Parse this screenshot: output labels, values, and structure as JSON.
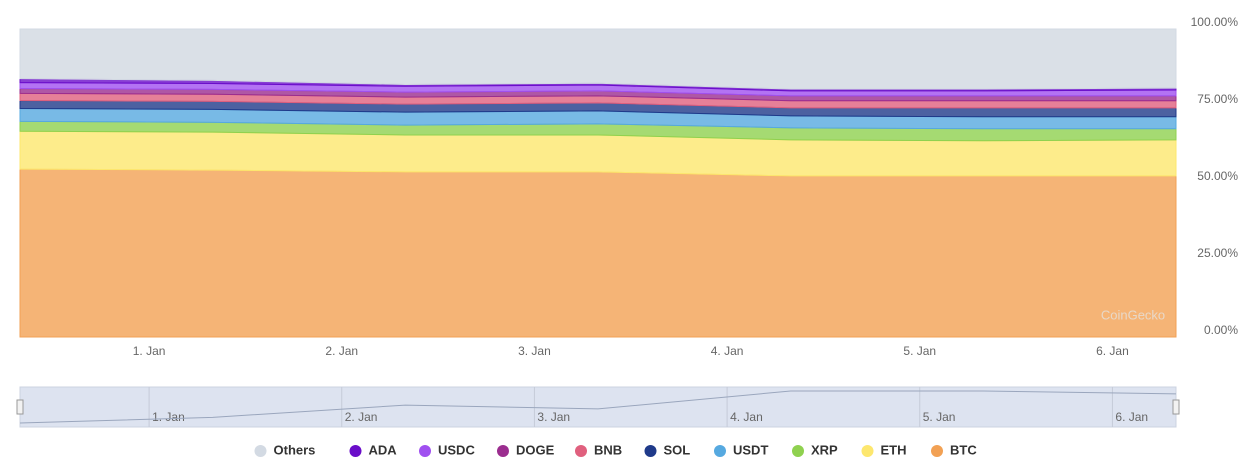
{
  "chart_data": {
    "type": "stacked-area",
    "watermark": "CoinGecko",
    "x": [
      0.33,
      1.33,
      2.33,
      3.33,
      4.33,
      5.33,
      6.33
    ],
    "xlim": [
      0.33,
      6.33
    ],
    "xticks": [
      {
        "value": 1,
        "label": "1. Jan"
      },
      {
        "value": 2,
        "label": "2. Jan"
      },
      {
        "value": 3,
        "label": "3. Jan"
      },
      {
        "value": 4,
        "label": "4. Jan"
      },
      {
        "value": 5,
        "label": "5. Jan"
      },
      {
        "value": 6,
        "label": "6. Jan"
      }
    ],
    "ylim": [
      0,
      100
    ],
    "yticks": [
      {
        "value": 0,
        "label": "0.00%"
      },
      {
        "value": 25,
        "label": "25.00%"
      },
      {
        "value": 50,
        "label": "50.00%"
      },
      {
        "value": 75,
        "label": "75.00%"
      },
      {
        "value": 100,
        "label": "100.00%"
      }
    ],
    "grid": false,
    "legend": "bottom",
    "series": [
      {
        "name": "Others",
        "color": "#d3dae3",
        "values": [
          16.1,
          16.7,
          18.0,
          17.6,
          19.5,
          19.5,
          19.2
        ]
      },
      {
        "name": "ADA",
        "color": "#6a0dc9",
        "values": [
          1.3,
          1.0,
          0.6,
          0.6,
          0.6,
          0.6,
          0.6
        ]
      },
      {
        "name": "USDC",
        "color": "#a050f0",
        "values": [
          1.9,
          1.9,
          1.9,
          1.9,
          1.6,
          1.6,
          1.9
        ]
      },
      {
        "name": "DOGE",
        "color": "#9b2d8f",
        "values": [
          1.6,
          1.6,
          1.6,
          1.6,
          1.6,
          1.6,
          1.6
        ]
      },
      {
        "name": "BNB",
        "color": "#e0607e",
        "values": [
          2.3,
          2.3,
          2.3,
          2.3,
          2.3,
          2.3,
          2.3
        ]
      },
      {
        "name": "SOL",
        "color": "#1f3a8a",
        "values": [
          2.6,
          2.6,
          2.6,
          2.6,
          2.6,
          2.9,
          2.9
        ]
      },
      {
        "name": "USDT",
        "color": "#56a9e0",
        "values": [
          4.2,
          4.2,
          4.2,
          4.2,
          3.9,
          3.9,
          3.9
        ]
      },
      {
        "name": "XRP",
        "color": "#8fd14f",
        "values": [
          3.2,
          3.2,
          3.2,
          3.6,
          3.9,
          3.9,
          3.6
        ]
      },
      {
        "name": "ETH",
        "color": "#fde76e",
        "values": [
          12.3,
          12.3,
          12.0,
          12.0,
          11.7,
          11.4,
          11.7
        ]
      },
      {
        "name": "BTC",
        "color": "#f2a154",
        "values": [
          54.5,
          54.2,
          53.6,
          53.6,
          52.3,
          52.3,
          52.3
        ]
      }
    ]
  }
}
